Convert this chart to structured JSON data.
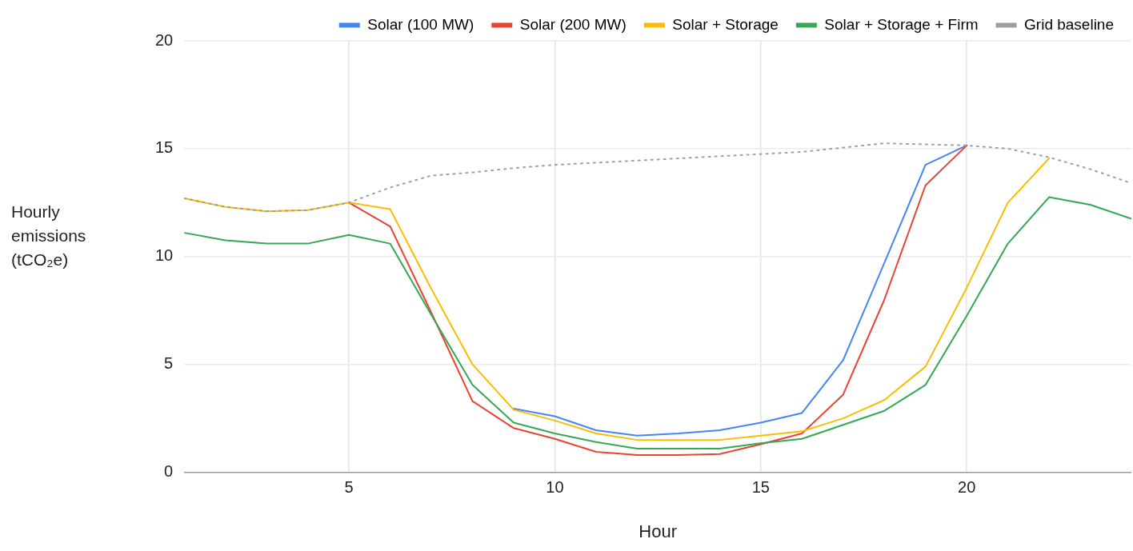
{
  "chart_data": {
    "type": "line",
    "xlabel": "Hour",
    "ylabel": "Hourly emissions (tCO₂e)",
    "x": [
      1,
      2,
      3,
      4,
      5,
      6,
      7,
      8,
      9,
      10,
      11,
      12,
      13,
      14,
      15,
      16,
      17,
      18,
      19,
      20,
      21,
      22,
      23,
      24
    ],
    "xlim": [
      1,
      24
    ],
    "xticks": [
      5,
      10,
      15,
      20
    ],
    "ylim": [
      0,
      20
    ],
    "yticks": [
      0,
      5,
      10,
      15,
      20
    ],
    "grid": true,
    "legend": "top right",
    "marker": "none",
    "series": [
      {
        "name": "Solar (100 MW)",
        "color": "#4285f4",
        "values": [
          null,
          null,
          null,
          null,
          null,
          null,
          null,
          null,
          2.95,
          2.6,
          1.95,
          1.7,
          1.8,
          1.95,
          2.3,
          2.75,
          5.2,
          9.7,
          14.25,
          15.15,
          null,
          null,
          null,
          null
        ]
      },
      {
        "name": "Solar (200 MW)",
        "color": "#ea4335",
        "values": [
          null,
          null,
          null,
          null,
          12.5,
          11.4,
          7.4,
          3.3,
          2.05,
          1.55,
          0.95,
          0.8,
          0.8,
          0.85,
          1.3,
          1.8,
          3.6,
          8.0,
          13.3,
          15.15,
          null,
          null,
          null,
          null
        ]
      },
      {
        "name": "Solar + Storage",
        "color": "#fbbc04",
        "values": [
          12.7,
          12.3,
          12.1,
          12.15,
          12.5,
          12.2,
          8.5,
          5.0,
          2.9,
          2.4,
          1.8,
          1.5,
          1.5,
          1.5,
          1.7,
          1.9,
          2.5,
          3.35,
          4.9,
          8.55,
          12.5,
          14.55,
          null,
          null
        ]
      },
      {
        "name": "Solar + Storage + Firm",
        "color": "#34a853",
        "values": [
          11.1,
          10.75,
          10.6,
          10.6,
          11.0,
          10.6,
          7.3,
          4.05,
          2.3,
          1.8,
          1.4,
          1.1,
          1.1,
          1.1,
          1.35,
          1.55,
          2.2,
          2.85,
          4.05,
          7.25,
          10.6,
          12.75,
          12.4,
          11.75
        ]
      },
      {
        "name": "Grid baseline",
        "color": "#9e9e9e",
        "line_style": "dotted",
        "values": [
          12.7,
          12.3,
          12.1,
          12.15,
          12.5,
          13.2,
          13.75,
          13.9,
          14.1,
          14.25,
          14.35,
          14.45,
          14.55,
          14.65,
          14.75,
          14.85,
          15.05,
          15.25,
          15.2,
          15.15,
          15.0,
          14.6,
          14.05,
          13.4
        ]
      }
    ]
  }
}
